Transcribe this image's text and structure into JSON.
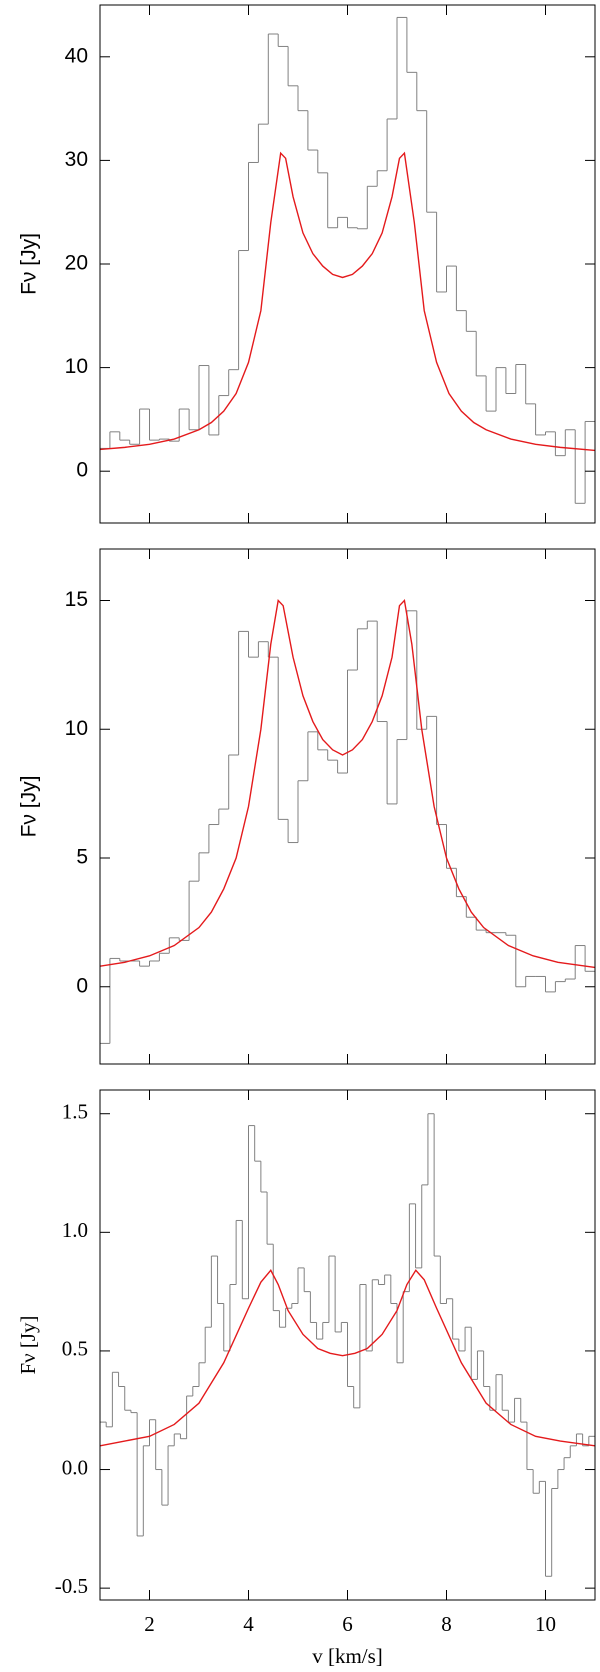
{
  "chart_data": [
    {
      "type": "histogram",
      "ylabel": "Fν [Jy]",
      "color": "#808080",
      "xlim": [
        1,
        11
      ],
      "xticks": [
        2,
        4,
        6,
        8,
        10
      ],
      "xtick_labels": false,
      "ylim": [
        -5,
        45
      ],
      "yticks": [
        0,
        10,
        20,
        30,
        40
      ],
      "bins": [
        1,
        1.2,
        1.4,
        1.6,
        1.8,
        2,
        2.2,
        2.4,
        2.6,
        2.8,
        3,
        3.2,
        3.4,
        3.6,
        3.8,
        4,
        4.2,
        4.4,
        4.6,
        4.8,
        5,
        5.2,
        5.4,
        5.6,
        5.8,
        6,
        6.2,
        6.4,
        6.6,
        6.8,
        7,
        7.2,
        7.4,
        7.6,
        7.8,
        8,
        8.2,
        8.4,
        8.6,
        8.8,
        9,
        9.2,
        9.4,
        9.6,
        9.8,
        10,
        10.2,
        10.4,
        10.6,
        10.8,
        11
      ],
      "values": [
        2.2,
        3.8,
        3.0,
        2.6,
        6.0,
        3.0,
        3.1,
        2.9,
        6.0,
        4.0,
        10.2,
        3.5,
        7.3,
        9.8,
        21.3,
        29.8,
        33.5,
        42.2,
        41.0,
        37.2,
        34.8,
        31.0,
        28.8,
        23.5,
        24.5,
        23.5,
        23.4,
        27.5,
        29.0,
        34.0,
        43.8,
        38.5,
        34.8,
        25.0,
        17.3,
        19.8,
        15.5,
        13.5,
        9.2,
        5.8,
        10.0,
        7.5,
        10.3,
        6.5,
        3.5,
        3.8,
        1.5,
        4.0,
        -3.1,
        4.8
      ],
      "line": {
        "color": "#e41a1c",
        "x": [
          1,
          1.5,
          2,
          2.5,
          3,
          3.25,
          3.5,
          3.75,
          4,
          4.25,
          4.45,
          4.65,
          4.75,
          4.9,
          5.1,
          5.3,
          5.5,
          5.7,
          5.9,
          6.1,
          6.3,
          6.5,
          6.7,
          6.9,
          7.05,
          7.15,
          7.35,
          7.55,
          7.8,
          8.05,
          8.3,
          8.55,
          8.8,
          9.3,
          9.8,
          10.3,
          11
        ],
        "values": [
          2.1,
          2.3,
          2.6,
          3.1,
          4.0,
          4.7,
          5.8,
          7.5,
          10.5,
          15.5,
          24,
          30.7,
          30.2,
          26.5,
          23,
          21,
          19.8,
          19.0,
          18.7,
          19.0,
          19.8,
          21,
          23,
          26.5,
          30.2,
          30.7,
          24,
          15.5,
          10.5,
          7.5,
          5.8,
          4.7,
          4.0,
          3.1,
          2.6,
          2.3,
          2.0
        ]
      }
    },
    {
      "type": "histogram",
      "ylabel": "Fν [Jy]",
      "color": "#808080",
      "xlim": [
        1,
        11
      ],
      "xticks": [
        2,
        4,
        6,
        8,
        10
      ],
      "xtick_labels": false,
      "ylim": [
        -3,
        17
      ],
      "yticks": [
        0,
        5,
        10,
        15
      ],
      "bins": [
        1,
        1.2,
        1.4,
        1.6,
        1.8,
        2,
        2.2,
        2.4,
        2.6,
        2.8,
        3,
        3.2,
        3.4,
        3.6,
        3.8,
        4,
        4.2,
        4.4,
        4.6,
        4.8,
        5,
        5.2,
        5.4,
        5.6,
        5.8,
        6,
        6.2,
        6.4,
        6.6,
        6.8,
        7,
        7.2,
        7.4,
        7.6,
        7.8,
        8,
        8.2,
        8.4,
        8.6,
        8.8,
        9,
        9.2,
        9.4,
        9.6,
        9.8,
        10,
        10.2,
        10.4,
        10.6,
        10.8,
        11
      ],
      "values": [
        -2.2,
        1.1,
        1.0,
        1.0,
        0.8,
        1.0,
        1.3,
        1.9,
        1.8,
        4.1,
        5.2,
        6.3,
        6.9,
        9.0,
        13.8,
        12.8,
        13.4,
        12.8,
        6.5,
        5.6,
        8.0,
        9.9,
        9.2,
        8.8,
        8.3,
        12.3,
        13.9,
        14.2,
        10.3,
        7.1,
        9.6,
        14.6,
        10.0,
        10.5,
        6.3,
        4.6,
        3.5,
        2.7,
        2.2,
        2.1,
        2.1,
        2.0,
        0.0,
        0.4,
        0.4,
        -0.2,
        0.2,
        0.3,
        1.6,
        0.6
      ],
      "line": {
        "color": "#e41a1c",
        "x": [
          1,
          1.5,
          2,
          2.5,
          3,
          3.25,
          3.5,
          3.75,
          4,
          4.25,
          4.45,
          4.6,
          4.7,
          4.9,
          5.1,
          5.3,
          5.5,
          5.7,
          5.9,
          6.1,
          6.3,
          6.5,
          6.7,
          6.9,
          7.05,
          7.15,
          7.3,
          7.5,
          7.75,
          8,
          8.25,
          8.5,
          8.75,
          9.25,
          9.75,
          10.25,
          11
        ],
        "values": [
          0.8,
          0.95,
          1.2,
          1.6,
          2.3,
          2.9,
          3.8,
          5.0,
          7.0,
          10,
          13.3,
          15.0,
          14.8,
          12.8,
          11.3,
          10.3,
          9.6,
          9.2,
          9.0,
          9.2,
          9.6,
          10.3,
          11.3,
          12.8,
          14.8,
          15.0,
          13.3,
          10,
          7.0,
          5.0,
          3.8,
          2.9,
          2.3,
          1.6,
          1.2,
          0.95,
          0.75
        ]
      }
    },
    {
      "type": "histogram",
      "ylabel": "Fν [Jy]",
      "xlabel": "v [km/s]",
      "color": "#808080",
      "xlim": [
        1,
        11
      ],
      "xticks": [
        2,
        4,
        6,
        8,
        10
      ],
      "xtick_labels": true,
      "ylim": [
        -0.55,
        1.6
      ],
      "yticks": [
        -0.5,
        {
          "value": 0,
          "label": "0.0"
        },
        0.5,
        {
          "value": 1,
          "label": "1.0"
        },
        1.5
      ],
      "bins": [
        1,
        1.125,
        1.25,
        1.375,
        1.5,
        1.625,
        1.75,
        1.875,
        2,
        2.125,
        2.25,
        2.375,
        2.5,
        2.625,
        2.75,
        2.875,
        3,
        3.125,
        3.25,
        3.375,
        3.5,
        3.625,
        3.75,
        3.875,
        4,
        4.125,
        4.25,
        4.375,
        4.5,
        4.625,
        4.75,
        4.875,
        5,
        5.125,
        5.25,
        5.375,
        5.5,
        5.625,
        5.75,
        5.875,
        6,
        6.125,
        6.25,
        6.375,
        6.5,
        6.625,
        6.75,
        6.875,
        7,
        7.125,
        7.25,
        7.375,
        7.5,
        7.625,
        7.75,
        7.875,
        8,
        8.125,
        8.25,
        8.375,
        8.5,
        8.625,
        8.75,
        8.875,
        9,
        9.125,
        9.25,
        9.375,
        9.5,
        9.625,
        9.75,
        9.875,
        10,
        10.125,
        10.25,
        10.375,
        10.5,
        10.625,
        10.75,
        10.875,
        11
      ],
      "values": [
        0.2,
        0.18,
        0.41,
        0.35,
        0.25,
        0.24,
        -0.28,
        0.1,
        0.21,
        0.0,
        -0.15,
        0.1,
        0.15,
        0.13,
        0.31,
        0.35,
        0.45,
        0.6,
        0.9,
        0.7,
        0.5,
        0.78,
        1.05,
        0.72,
        1.45,
        1.3,
        1.17,
        0.95,
        0.67,
        0.6,
        0.68,
        0.7,
        0.85,
        0.75,
        0.62,
        0.55,
        0.62,
        0.9,
        0.58,
        0.62,
        0.35,
        0.26,
        0.78,
        0.5,
        0.8,
        0.78,
        0.82,
        0.7,
        0.45,
        0.75,
        1.12,
        0.85,
        1.2,
        1.5,
        0.9,
        0.7,
        0.72,
        0.55,
        0.5,
        0.6,
        0.38,
        0.5,
        0.35,
        0.25,
        0.4,
        0.25,
        0.2,
        0.3,
        0.2,
        0.0,
        -0.1,
        -0.05,
        -0.45,
        -0.08,
        0.0,
        0.05,
        0.1,
        0.15,
        0.1,
        0.14
      ],
      "line": {
        "color": "#e41a1c",
        "x": [
          1,
          1.5,
          2,
          2.5,
          3,
          3.5,
          4,
          4.25,
          4.45,
          4.6,
          4.8,
          5.1,
          5.4,
          5.65,
          5.9,
          6.15,
          6.4,
          6.7,
          7.0,
          7.2,
          7.38,
          7.55,
          7.8,
          8.3,
          8.8,
          9.3,
          9.8,
          10.3,
          11
        ],
        "values": [
          0.1,
          0.12,
          0.14,
          0.19,
          0.28,
          0.45,
          0.68,
          0.79,
          0.84,
          0.78,
          0.67,
          0.57,
          0.51,
          0.49,
          0.48,
          0.49,
          0.51,
          0.57,
          0.67,
          0.78,
          0.84,
          0.8,
          0.68,
          0.45,
          0.28,
          0.19,
          0.14,
          0.12,
          0.1
        ]
      }
    }
  ]
}
